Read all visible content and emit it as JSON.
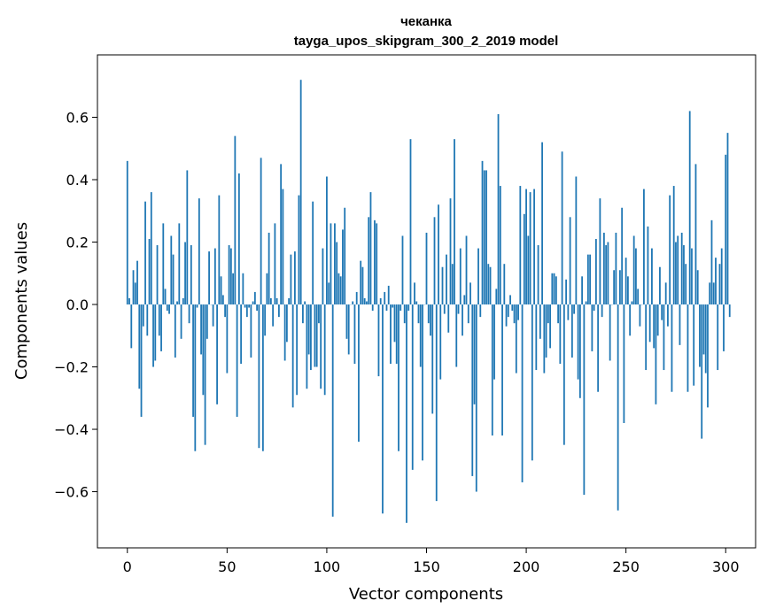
{
  "chart_data": {
    "type": "bar",
    "title": "чеканка",
    "subtitle": "tayga_upos_skipgram_300_2_2019 model",
    "xlabel": "Vector components",
    "ylabel": "Components values",
    "xlim": [
      -15,
      315
    ],
    "ylim": [
      -0.78,
      0.8
    ],
    "xticks": [
      0,
      50,
      100,
      150,
      200,
      250,
      300
    ],
    "xtick_labels": [
      "0",
      "50",
      "100",
      "150",
      "200",
      "250",
      "300"
    ],
    "yticks": [
      -0.6,
      -0.4,
      -0.2,
      0.0,
      0.2,
      0.4,
      0.6
    ],
    "ytick_labels": [
      "−0.6",
      "−0.4",
      "−0.2",
      "0.0",
      "0.2",
      "0.4",
      "0.6"
    ],
    "bar_color": "#1f77b4",
    "values": [
      0.46,
      0.02,
      -0.14,
      0.11,
      0.07,
      0.14,
      -0.27,
      -0.36,
      -0.07,
      0.33,
      -0.1,
      0.21,
      0.36,
      -0.2,
      -0.18,
      0.19,
      -0.1,
      -0.15,
      0.26,
      0.05,
      -0.02,
      -0.03,
      0.22,
      0.16,
      -0.17,
      0.01,
      0.26,
      -0.11,
      0.02,
      0.2,
      0.43,
      -0.06,
      0.19,
      -0.36,
      -0.47,
      -0.01,
      0.34,
      -0.16,
      -0.29,
      -0.45,
      -0.11,
      0.17,
      0.0,
      -0.07,
      0.18,
      -0.32,
      0.35,
      0.09,
      0.03,
      -0.04,
      -0.22,
      0.19,
      0.18,
      0.1,
      0.54,
      -0.36,
      0.42,
      -0.19,
      0.1,
      -0.01,
      -0.04,
      -0.01,
      -0.17,
      0.01,
      0.04,
      -0.02,
      -0.46,
      0.47,
      -0.47,
      -0.1,
      0.1,
      0.23,
      0.02,
      -0.07,
      0.26,
      0.02,
      -0.04,
      0.45,
      0.37,
      -0.18,
      -0.12,
      0.02,
      0.16,
      -0.33,
      0.17,
      -0.29,
      0.35,
      0.72,
      -0.06,
      0.01,
      -0.27,
      -0.16,
      -0.21,
      0.33,
      -0.2,
      -0.2,
      -0.06,
      -0.27,
      0.18,
      -0.29,
      0.41,
      0.07,
      0.26,
      -0.68,
      0.26,
      0.2,
      0.1,
      0.09,
      0.24,
      0.31,
      -0.11,
      -0.16,
      0.0,
      0.01,
      -0.19,
      0.04,
      -0.44,
      0.14,
      0.12,
      0.02,
      0.01,
      0.28,
      0.36,
      -0.02,
      0.27,
      0.26,
      -0.23,
      0.02,
      -0.67,
      0.04,
      -0.02,
      0.06,
      -0.19,
      -0.01,
      -0.12,
      -0.19,
      -0.47,
      -0.02,
      0.22,
      -0.06,
      -0.7,
      -0.02,
      0.53,
      -0.53,
      0.07,
      0.01,
      -0.06,
      -0.2,
      -0.5,
      0.0,
      0.23,
      -0.06,
      -0.1,
      -0.35,
      0.28,
      -0.63,
      0.32,
      -0.24,
      0.12,
      -0.03,
      0.16,
      -0.09,
      0.34,
      0.13,
      0.53,
      -0.2,
      -0.03,
      0.18,
      -0.1,
      0.03,
      0.22,
      -0.06,
      0.07,
      -0.55,
      -0.32,
      -0.6,
      0.18,
      -0.04,
      0.46,
      0.43,
      0.43,
      0.13,
      0.12,
      -0.42,
      -0.24,
      0.05,
      0.61,
      0.38,
      -0.42,
      0.13,
      -0.07,
      -0.04,
      0.03,
      -0.02,
      -0.06,
      -0.22,
      -0.05,
      0.38,
      -0.57,
      0.29,
      0.37,
      0.22,
      0.36,
      -0.5,
      0.37,
      -0.21,
      0.19,
      -0.11,
      0.52,
      -0.22,
      -0.17,
      -0.06,
      -0.14,
      0.1,
      0.1,
      0.09,
      -0.06,
      -0.19,
      0.49,
      -0.45,
      0.08,
      -0.05,
      0.28,
      -0.17,
      -0.03,
      0.41,
      -0.24,
      -0.3,
      0.09,
      -0.61,
      0.01,
      0.16,
      0.16,
      -0.15,
      -0.02,
      0.21,
      -0.28,
      0.34,
      -0.04,
      0.23,
      0.19,
      0.2,
      -0.18,
      0.0,
      0.11,
      0.23,
      -0.66,
      0.11,
      0.31,
      -0.38,
      0.15,
      0.09,
      -0.1,
      0.01,
      0.22,
      0.18,
      0.05,
      -0.07,
      0.0,
      0.37,
      -0.21,
      0.25,
      -0.12,
      0.18,
      -0.14,
      -0.32,
      -0.1,
      0.12,
      -0.05,
      -0.21,
      0.07,
      -0.07,
      0.35,
      -0.28,
      0.38,
      0.2,
      0.22,
      -0.13,
      0.23,
      0.19,
      0.13,
      -0.28,
      0.62,
      0.18,
      -0.26,
      0.45,
      0.11,
      -0.2,
      -0.43,
      -0.16,
      -0.22,
      -0.33,
      0.07,
      0.27,
      0.07,
      0.15,
      -0.21,
      0.13,
      0.18,
      -0.15,
      0.48,
      0.55,
      -0.04
    ]
  }
}
